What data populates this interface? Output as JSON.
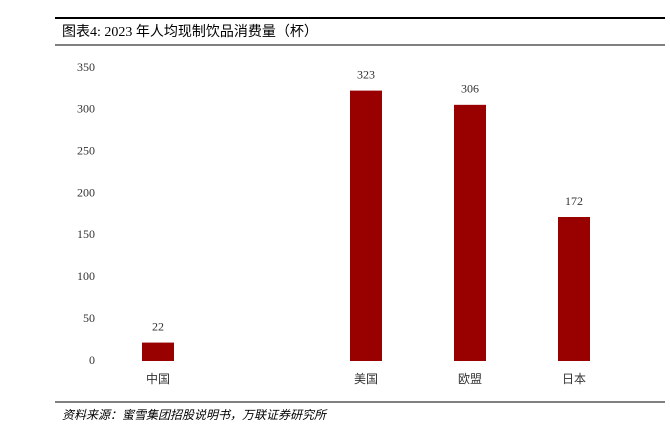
{
  "chart_data": {
    "type": "bar",
    "title": "图表4: 2023 年人均现制饮品消费量（杯）",
    "categories": [
      "中国",
      null,
      "美国",
      "欧盟",
      "日本"
    ],
    "values": [
      22,
      null,
      323,
      306,
      172
    ],
    "color": "#990000",
    "ylim": [
      0,
      350
    ],
    "yticks": [
      0,
      50,
      100,
      150,
      200,
      250,
      300,
      350
    ],
    "grid": false,
    "source": "资料来源：蜜雪集团招股说明书，万联证券研究所"
  }
}
